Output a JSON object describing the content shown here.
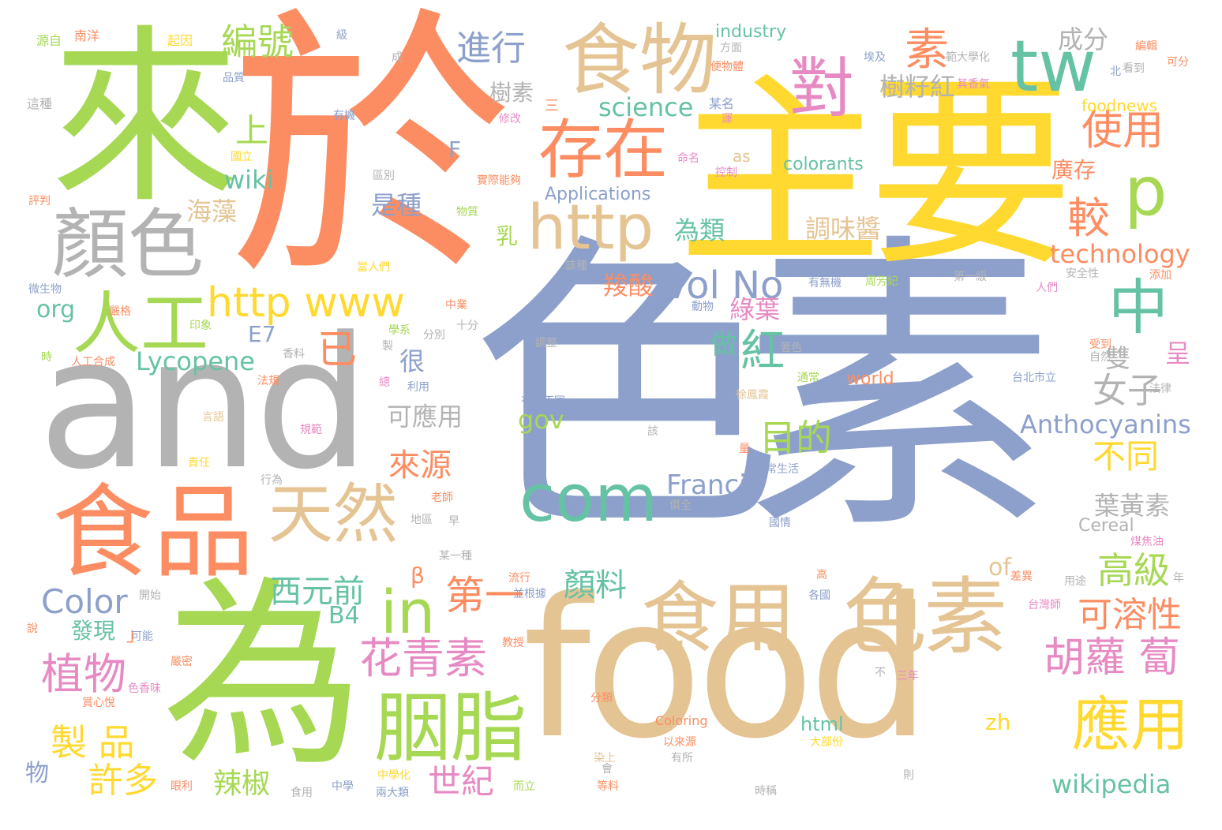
{
  "colors": {
    "blue": "#8da0cb",
    "orange": "#fc8d62",
    "green": "#a6d854",
    "yellow": "#ffd92f",
    "tan": "#e5c494",
    "gray": "#b3b3b3",
    "teal": "#66c2a5",
    "pink": "#e78ac3"
  },
  "words": [
    {
      "text": "色素",
      "color": "blue"
    },
    {
      "text": "於",
      "color": "orange"
    },
    {
      "text": "主要",
      "color": "yellow"
    },
    {
      "text": "來",
      "color": "green"
    },
    {
      "text": "and",
      "color": "gray"
    },
    {
      "text": "為",
      "color": "green"
    },
    {
      "text": "food",
      "color": "tan"
    },
    {
      "text": "食物",
      "color": "tan"
    },
    {
      "text": "食品",
      "color": "orange"
    },
    {
      "text": "顏色",
      "color": "gray"
    },
    {
      "text": "食用",
      "color": "tan"
    },
    {
      "text": "色素",
      "color": "tan"
    },
    {
      "text": "天然",
      "color": "tan"
    },
    {
      "text": "胭脂",
      "color": "green"
    },
    {
      "text": "存在",
      "color": "orange"
    },
    {
      "text": "http",
      "color": "tan"
    },
    {
      "text": "人工",
      "color": "green"
    },
    {
      "text": "tw",
      "color": "teal"
    },
    {
      "text": "對",
      "color": "pink"
    },
    {
      "text": "p",
      "color": "green"
    },
    {
      "text": "中",
      "color": "teal"
    },
    {
      "text": "com",
      "color": "teal"
    },
    {
      "text": "in",
      "color": "green"
    },
    {
      "text": "應用",
      "color": "yellow"
    },
    {
      "text": "http www",
      "color": "yellow"
    },
    {
      "text": "Vol No",
      "color": "blue"
    },
    {
      "text": "編號",
      "color": "green"
    },
    {
      "text": "進行",
      "color": "blue"
    },
    {
      "text": "素",
      "color": "orange"
    },
    {
      "text": "使用",
      "color": "orange"
    },
    {
      "text": "較",
      "color": "orange"
    },
    {
      "text": "上",
      "color": "green"
    },
    {
      "text": "已",
      "color": "orange"
    },
    {
      "text": "紅",
      "color": "teal"
    },
    {
      "text": "胡蘿 蔔",
      "color": "pink"
    },
    {
      "text": "花青素",
      "color": "pink"
    },
    {
      "text": "第一",
      "color": "orange"
    },
    {
      "text": "植物",
      "color": "pink"
    },
    {
      "text": "製 品",
      "color": "yellow"
    },
    {
      "text": "西元前",
      "color": "teal"
    },
    {
      "text": "目的",
      "color": "green"
    },
    {
      "text": "可溶性",
      "color": "orange"
    },
    {
      "text": "高級",
      "color": "green"
    },
    {
      "text": "Color",
      "color": "blue"
    },
    {
      "text": "來源",
      "color": "orange"
    },
    {
      "text": "海藻",
      "color": "tan"
    },
    {
      "text": "世紀",
      "color": "pink"
    },
    {
      "text": "許多",
      "color": "yellow"
    },
    {
      "text": "辣椒",
      "color": "green"
    },
    {
      "text": "女子",
      "color": "gray"
    },
    {
      "text": "不同",
      "color": "yellow"
    },
    {
      "text": "樹籽紅",
      "color": "gray"
    },
    {
      "text": "成分",
      "color": "gray"
    },
    {
      "text": "science",
      "color": "teal"
    },
    {
      "text": "technology",
      "color": "orange"
    },
    {
      "text": "Anthocyanins",
      "color": "blue"
    },
    {
      "text": "wikipedia",
      "color": "teal"
    },
    {
      "text": "Lycopene",
      "color": "teal"
    },
    {
      "text": "Francis",
      "color": "blue"
    },
    {
      "text": "顏料",
      "color": "teal"
    },
    {
      "text": "調味醬",
      "color": "tan"
    },
    {
      "text": "羧酸",
      "color": "orange"
    },
    {
      "text": "綠葉",
      "color": "pink"
    },
    {
      "text": "做",
      "color": "teal"
    },
    {
      "text": "葉黃素",
      "color": "gray"
    },
    {
      "text": "可應用",
      "color": "gray"
    },
    {
      "text": "是種",
      "color": "blue"
    },
    {
      "text": "為類",
      "color": "teal"
    },
    {
      "text": "很",
      "color": "blue"
    },
    {
      "text": "wiki",
      "color": "teal"
    },
    {
      "text": "org",
      "color": "teal"
    },
    {
      "text": "E7",
      "color": "blue"
    },
    {
      "text": "B4",
      "color": "teal"
    },
    {
      "text": "發現",
      "color": "teal"
    },
    {
      "text": "gov",
      "color": "green"
    },
    {
      "text": "of",
      "color": "tan"
    },
    {
      "text": "zh",
      "color": "yellow"
    },
    {
      "text": "html",
      "color": "teal"
    },
    {
      "text": "樹素",
      "color": "gray"
    },
    {
      "text": "廣存",
      "color": "orange"
    },
    {
      "text": "乳",
      "color": "green"
    },
    {
      "text": "industry",
      "color": "teal"
    },
    {
      "text": "colorants",
      "color": "teal"
    },
    {
      "text": "Applications",
      "color": "blue"
    },
    {
      "text": "foodnews",
      "color": "yellow"
    },
    {
      "text": "Cereal",
      "color": "gray"
    },
    {
      "text": "world",
      "color": "orange"
    },
    {
      "text": "Coloring",
      "color": "orange"
    },
    {
      "text": "雙",
      "color": "gray"
    },
    {
      "text": "呈",
      "color": "pink"
    },
    {
      "text": "物",
      "color": "blue"
    },
    {
      "text": "F",
      "color": "blue"
    },
    {
      "text": "β",
      "color": "orange"
    },
    {
      "text": "as",
      "color": "tan"
    },
    {
      "text": "」",
      "color": "orange"
    },
    {
      "text": "源自",
      "color": "green"
    },
    {
      "text": "南洋",
      "color": "orange"
    },
    {
      "text": "起因",
      "color": "yellow"
    },
    {
      "text": "級",
      "color": "blue"
    },
    {
      "text": "成",
      "color": "gray"
    },
    {
      "text": "方面",
      "color": "gray"
    },
    {
      "text": "埃及",
      "color": "blue"
    },
    {
      "text": "範大學化",
      "color": "gray"
    },
    {
      "text": "編輯",
      "color": "orange"
    },
    {
      "text": "可分",
      "color": "orange"
    },
    {
      "text": "品質",
      "color": "blue"
    },
    {
      "text": "便物體",
      "color": "orange"
    },
    {
      "text": "看到",
      "color": "gray"
    },
    {
      "text": "北",
      "color": "blue"
    },
    {
      "text": "其香氣",
      "color": "pink"
    },
    {
      "text": "這種",
      "color": "gray"
    },
    {
      "text": "有機",
      "color": "blue"
    },
    {
      "text": "修改",
      "color": "pink"
    },
    {
      "text": "三",
      "color": "orange"
    },
    {
      "text": "某名",
      "color": "blue"
    },
    {
      "text": "運",
      "color": "pink"
    },
    {
      "text": "國立",
      "color": "yellow"
    },
    {
      "text": "命名",
      "color": "pink"
    },
    {
      "text": "控制",
      "color": "pink"
    },
    {
      "text": "區別",
      "color": "gray"
    },
    {
      "text": "實際能夠",
      "color": "orange"
    },
    {
      "text": "物質",
      "color": "green"
    },
    {
      "text": "評判",
      "color": "orange"
    },
    {
      "text": "當人們",
      "color": "yellow"
    },
    {
      "text": "該種",
      "color": "gray"
    },
    {
      "text": "有無機",
      "color": "blue"
    },
    {
      "text": "周芳妃",
      "color": "green"
    },
    {
      "text": "第一級",
      "color": "gray"
    },
    {
      "text": "人們",
      "color": "pink"
    },
    {
      "text": "安全性",
      "color": "gray"
    },
    {
      "text": "添加",
      "color": "orange"
    },
    {
      "text": "微生物",
      "color": "blue"
    },
    {
      "text": "嚴格",
      "color": "orange"
    },
    {
      "text": "印象",
      "color": "green"
    },
    {
      "text": "中業",
      "color": "orange"
    },
    {
      "text": "動物",
      "color": "blue"
    },
    {
      "text": "學系",
      "color": "green"
    },
    {
      "text": "分別",
      "color": "gray"
    },
    {
      "text": "十分",
      "color": "gray"
    },
    {
      "text": "時",
      "color": "green"
    },
    {
      "text": "人工合成",
      "color": "orange"
    },
    {
      "text": "製",
      "color": "gray"
    },
    {
      "text": "香料",
      "color": "gray"
    },
    {
      "text": "調整",
      "color": "gray"
    },
    {
      "text": "著色",
      "color": "gray"
    },
    {
      "text": "受到",
      "color": "orange"
    },
    {
      "text": "自然",
      "color": "gray"
    },
    {
      "text": "通常",
      "color": "green"
    },
    {
      "text": "台北市立",
      "color": "blue"
    },
    {
      "text": "法律",
      "color": "gray"
    },
    {
      "text": "法規",
      "color": "orange"
    },
    {
      "text": "總",
      "color": "pink"
    },
    {
      "text": "利用",
      "color": "blue"
    },
    {
      "text": "有所不同",
      "color": "blue"
    },
    {
      "text": "徐鳳霞",
      "color": "tan"
    },
    {
      "text": "言語",
      "color": "tan"
    },
    {
      "text": "規範",
      "color": "pink"
    },
    {
      "text": "該",
      "color": "gray"
    },
    {
      "text": "量",
      "color": "orange"
    },
    {
      "text": "責任",
      "color": "yellow"
    },
    {
      "text": "日常生活",
      "color": "blue"
    },
    {
      "text": "行為",
      "color": "gray"
    },
    {
      "text": "俱全",
      "color": "gray"
    },
    {
      "text": "老師",
      "color": "orange"
    },
    {
      "text": "地區",
      "color": "gray"
    },
    {
      "text": "早",
      "color": "gray"
    },
    {
      "text": "國情",
      "color": "blue"
    },
    {
      "text": "煤焦油",
      "color": "pink"
    },
    {
      "text": "某一種",
      "color": "gray"
    },
    {
      "text": "流行",
      "color": "orange"
    },
    {
      "text": "高",
      "color": "orange"
    },
    {
      "text": "差異",
      "color": "orange"
    },
    {
      "text": "用途",
      "color": "gray"
    },
    {
      "text": "年",
      "color": "gray"
    },
    {
      "text": "開始",
      "color": "gray"
    },
    {
      "text": "並根據",
      "color": "blue"
    },
    {
      "text": "各國",
      "color": "blue"
    },
    {
      "text": "台灣師",
      "color": "pink"
    },
    {
      "text": "說",
      "color": "orange"
    },
    {
      "text": "可能",
      "color": "blue"
    },
    {
      "text": "教授",
      "color": "orange"
    },
    {
      "text": "嚴密",
      "color": "orange"
    },
    {
      "text": "色香味",
      "color": "pink"
    },
    {
      "text": "賞心悅",
      "color": "orange"
    },
    {
      "text": "不",
      "color": "gray"
    },
    {
      "text": "三年",
      "color": "pink"
    },
    {
      "text": "分類",
      "color": "orange"
    },
    {
      "text": "以來源",
      "color": "orange"
    },
    {
      "text": "大部份",
      "color": "yellow"
    },
    {
      "text": "染上",
      "color": "tan"
    },
    {
      "text": "有所",
      "color": "gray"
    },
    {
      "text": "中學化",
      "color": "yellow"
    },
    {
      "text": "眼利",
      "color": "orange"
    },
    {
      "text": "食用",
      "color": "gray"
    },
    {
      "text": "中學",
      "color": "blue"
    },
    {
      "text": "兩大類",
      "color": "blue"
    },
    {
      "text": "而立",
      "color": "green"
    },
    {
      "text": "等料",
      "color": "orange"
    },
    {
      "text": "時稱",
      "color": "gray"
    },
    {
      "text": "則",
      "color": "gray"
    },
    {
      "text": "會",
      "color": "gray"
    }
  ]
}
